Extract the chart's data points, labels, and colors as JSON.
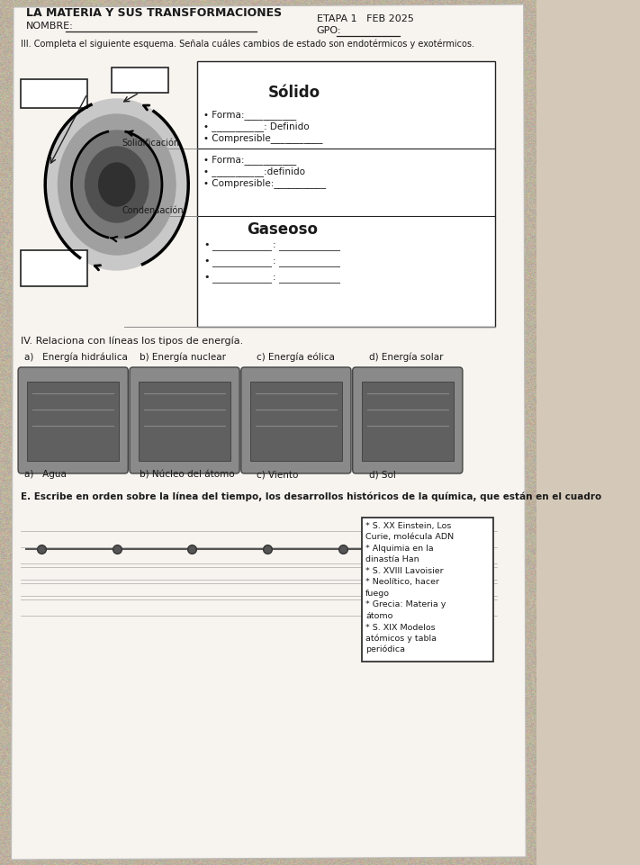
{
  "title": "LA MATERIA Y SUS TRANSFORMACIONES",
  "nombre_label": "NOMBRE:",
  "etapa_label": "ETAPA 1   FEB 2025",
  "gpo_label": "GPO:",
  "section3_title": "III. Completa el siguiente esquema. Señala cuáles cambios de estado son endotérmicos y exotérmicos.",
  "solido_label": "Sólido",
  "solidificacion_label": "Solidificación",
  "condensacion_label": "Condensación",
  "gaseoso_label": "Gaseoso",
  "solido_props": [
    "• Forma:___________",
    "• ___________: Definido",
    "• Compresible___________"
  ],
  "liquido_props": [
    "• Forma:___________",
    "• ___________:definido",
    "• Compresible:___________"
  ],
  "gaseoso_props": [
    "• ___________:___________",
    "• ___________:___________",
    "• ___________:___________"
  ],
  "section4_title": "IV. Relaciona con líneas los tipos de energía.",
  "energia_labels_top": [
    "a)   Energía hidráulica",
    "b) Energía nuclear",
    "c) Energía eólica",
    "d) Energía solar"
  ],
  "energia_labels_bot": [
    "a)   Agua",
    "b) Núcleo del átomo",
    "c) Viento",
    "d) Sol"
  ],
  "section5_title": "E. Escribe en orden sobre la línea del tiempo, los desarrollos históricos de la química, que están en el cuadro",
  "timeline_box_lines": [
    "* S. XX Einstein, Los",
    "Curie, molécula ADN",
    "* Alquimia en la",
    "dinastía Han",
    "* S. XVIII Lavoisier",
    "* Neolítico, hacer",
    "fuego",
    "* Grecia: Materia y",
    "átomo",
    "* S. XIX Modelos",
    "atómicos y tabla",
    "periódica"
  ],
  "bg_color": "#d4c9b8",
  "paper_color": "#f7f4ef",
  "text_color": "#1a1a1a",
  "line_color": "#222222",
  "diagram_colors": [
    "#c8c8c8",
    "#a0a0a0",
    "#787878",
    "#505050",
    "#303030"
  ],
  "energy_img_color": "#8a8a8a",
  "energy_img_dark": "#606060"
}
